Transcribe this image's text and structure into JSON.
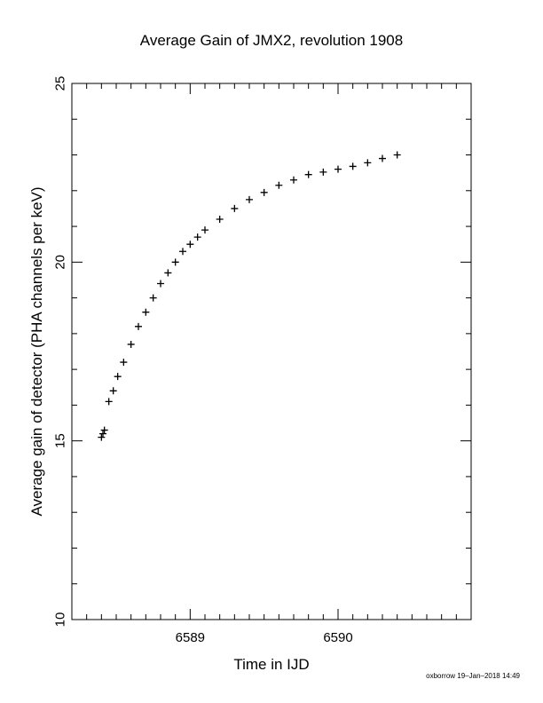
{
  "chart_data": {
    "type": "scatter",
    "title": "Average Gain of JMX2, revolution 1908",
    "xlabel": "Time in IJD",
    "ylabel": "Average gain of detector (PHA channels per keV)",
    "xlim": [
      6588.2,
      6590.9
    ],
    "ylim": [
      10,
      25
    ],
    "xticks": [
      6589,
      6590
    ],
    "yticks": [
      10,
      15,
      20,
      25
    ],
    "marker": "plus",
    "color": "#000000",
    "grid": false,
    "x": [
      6588.4,
      6588.41,
      6588.42,
      6588.45,
      6588.48,
      6588.51,
      6588.55,
      6588.6,
      6588.65,
      6588.7,
      6588.75,
      6588.8,
      6588.85,
      6588.9,
      6588.95,
      6589.0,
      6589.05,
      6589.1,
      6589.2,
      6589.3,
      6589.4,
      6589.5,
      6589.6,
      6589.7,
      6589.8,
      6589.9,
      6590.0,
      6590.1,
      6590.2,
      6590.3,
      6590.4
    ],
    "y": [
      15.1,
      15.2,
      15.3,
      16.1,
      16.4,
      16.8,
      17.2,
      17.7,
      18.2,
      18.6,
      19.0,
      19.4,
      19.7,
      20.0,
      20.3,
      20.5,
      20.7,
      20.9,
      21.2,
      21.5,
      21.75,
      21.95,
      22.15,
      22.3,
      22.45,
      22.52,
      22.6,
      22.68,
      22.78,
      22.9,
      23.0
    ]
  },
  "footer": "oxborrow 19–Jan–2018 14:49"
}
